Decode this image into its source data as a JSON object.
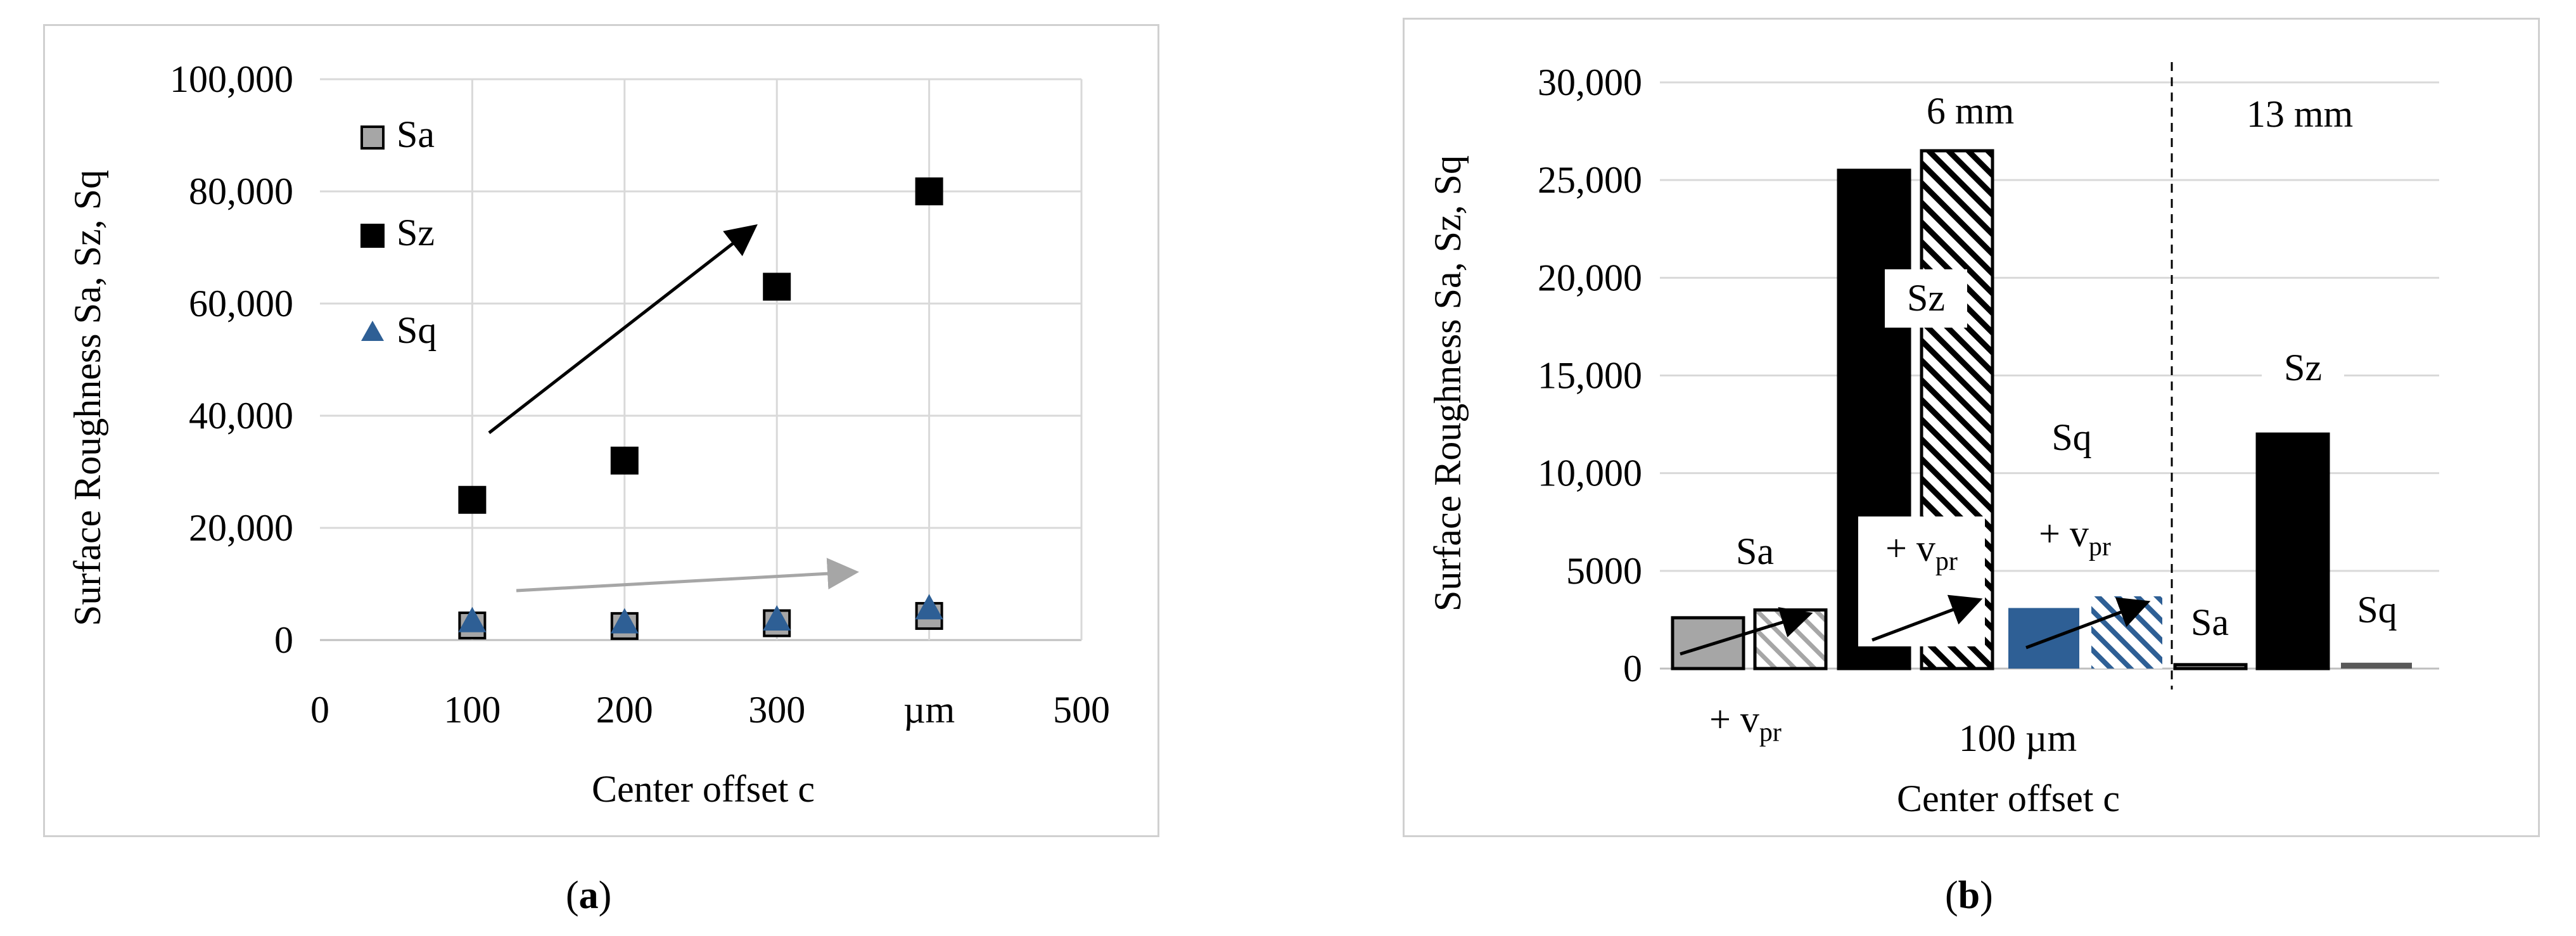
{
  "chart_data": [
    {
      "type": "scatter",
      "panel": "(a)",
      "panel_letter": "a",
      "xlabel": "Center offset c",
      "ylabel": "Surface Roughness Sa, Sz, Sq",
      "xlim": [
        0,
        500
      ],
      "ylim": [
        0,
        100000
      ],
      "x_ticks": [
        "0",
        "100",
        "200",
        "300",
        "µm",
        "500"
      ],
      "x_tick_values": [
        0,
        100,
        200,
        300,
        400,
        500
      ],
      "y_ticks": [
        "0",
        "20,000",
        "40,000",
        "60,000",
        "80,000",
        "100,000"
      ],
      "y_tick_values": [
        0,
        20000,
        40000,
        60000,
        80000,
        100000
      ],
      "grid": true,
      "legend_position": "top-left",
      "series": [
        {
          "name": "Sa",
          "marker": "square",
          "color": "#a6a6a6",
          "x": [
            100,
            200,
            300,
            400
          ],
          "y": [
            2600,
            2500,
            3000,
            4300
          ]
        },
        {
          "name": "Sz",
          "marker": "square",
          "color": "#000000",
          "x": [
            100,
            200,
            300,
            400
          ],
          "y": [
            25000,
            32000,
            63000,
            80000
          ]
        },
        {
          "name": "Sq",
          "marker": "triangle",
          "color": "#2e5f95",
          "x": [
            100,
            200,
            300,
            400
          ],
          "y": [
            3200,
            3000,
            3500,
            5500
          ]
        }
      ]
    },
    {
      "type": "bar",
      "panel": "(b)",
      "panel_letter": "b",
      "xlabel": "Center offset c",
      "ylabel": "Surface Roughness Sa, Sz, Sq",
      "ylim": [
        0,
        30000
      ],
      "y_ticks": [
        "0",
        "5000",
        "10,000",
        "15,000",
        "20,000",
        "25,000",
        "30,000"
      ],
      "y_tick_values": [
        0,
        5000,
        10000,
        15000,
        20000,
        25000,
        30000
      ],
      "grid": true,
      "group_labels": {
        "left": "6 mm",
        "right": "13 mm"
      },
      "axis_annotation": "100 µm",
      "bars": [
        {
          "metric": "Sa",
          "group": "6 mm",
          "variant": "base",
          "value": 2600,
          "fill": "#a6a6a6",
          "pattern": "solid"
        },
        {
          "metric": "Sa",
          "group": "6 mm",
          "variant": "+vpr",
          "value": 3000,
          "fill": "#a6a6a6",
          "pattern": "hatch"
        },
        {
          "metric": "Sz",
          "group": "6 mm",
          "variant": "base",
          "value": 25500,
          "fill": "#000000",
          "pattern": "solid"
        },
        {
          "metric": "Sz",
          "group": "6 mm",
          "variant": "+vpr",
          "value": 26500,
          "fill": "#000000",
          "pattern": "hatch"
        },
        {
          "metric": "Sq",
          "group": "6 mm",
          "variant": "base",
          "value": 3100,
          "fill": "#2e5f95",
          "pattern": "solid"
        },
        {
          "metric": "Sq",
          "group": "6 mm",
          "variant": "+vpr",
          "value": 3700,
          "fill": "#2e5f95",
          "pattern": "hatch"
        },
        {
          "metric": "Sa",
          "group": "13 mm",
          "variant": "base",
          "value": 200,
          "fill": "#a6a6a6",
          "pattern": "solid"
        },
        {
          "metric": "Sz",
          "group": "13 mm",
          "variant": "base",
          "value": 12000,
          "fill": "#000000",
          "pattern": "solid"
        },
        {
          "metric": "Sq",
          "group": "13 mm",
          "variant": "base",
          "value": 300,
          "fill": "#595959",
          "pattern": "solid"
        }
      ],
      "annotations": {
        "sa_label": "Sa",
        "sz_label": "Sz",
        "sq_label": "Sq",
        "vpr_prefix": "+ v",
        "vpr_subscript": "pr",
        "sa2_label": "Sa",
        "sz2_label": "Sz",
        "sq2_label": "Sq"
      }
    }
  ]
}
